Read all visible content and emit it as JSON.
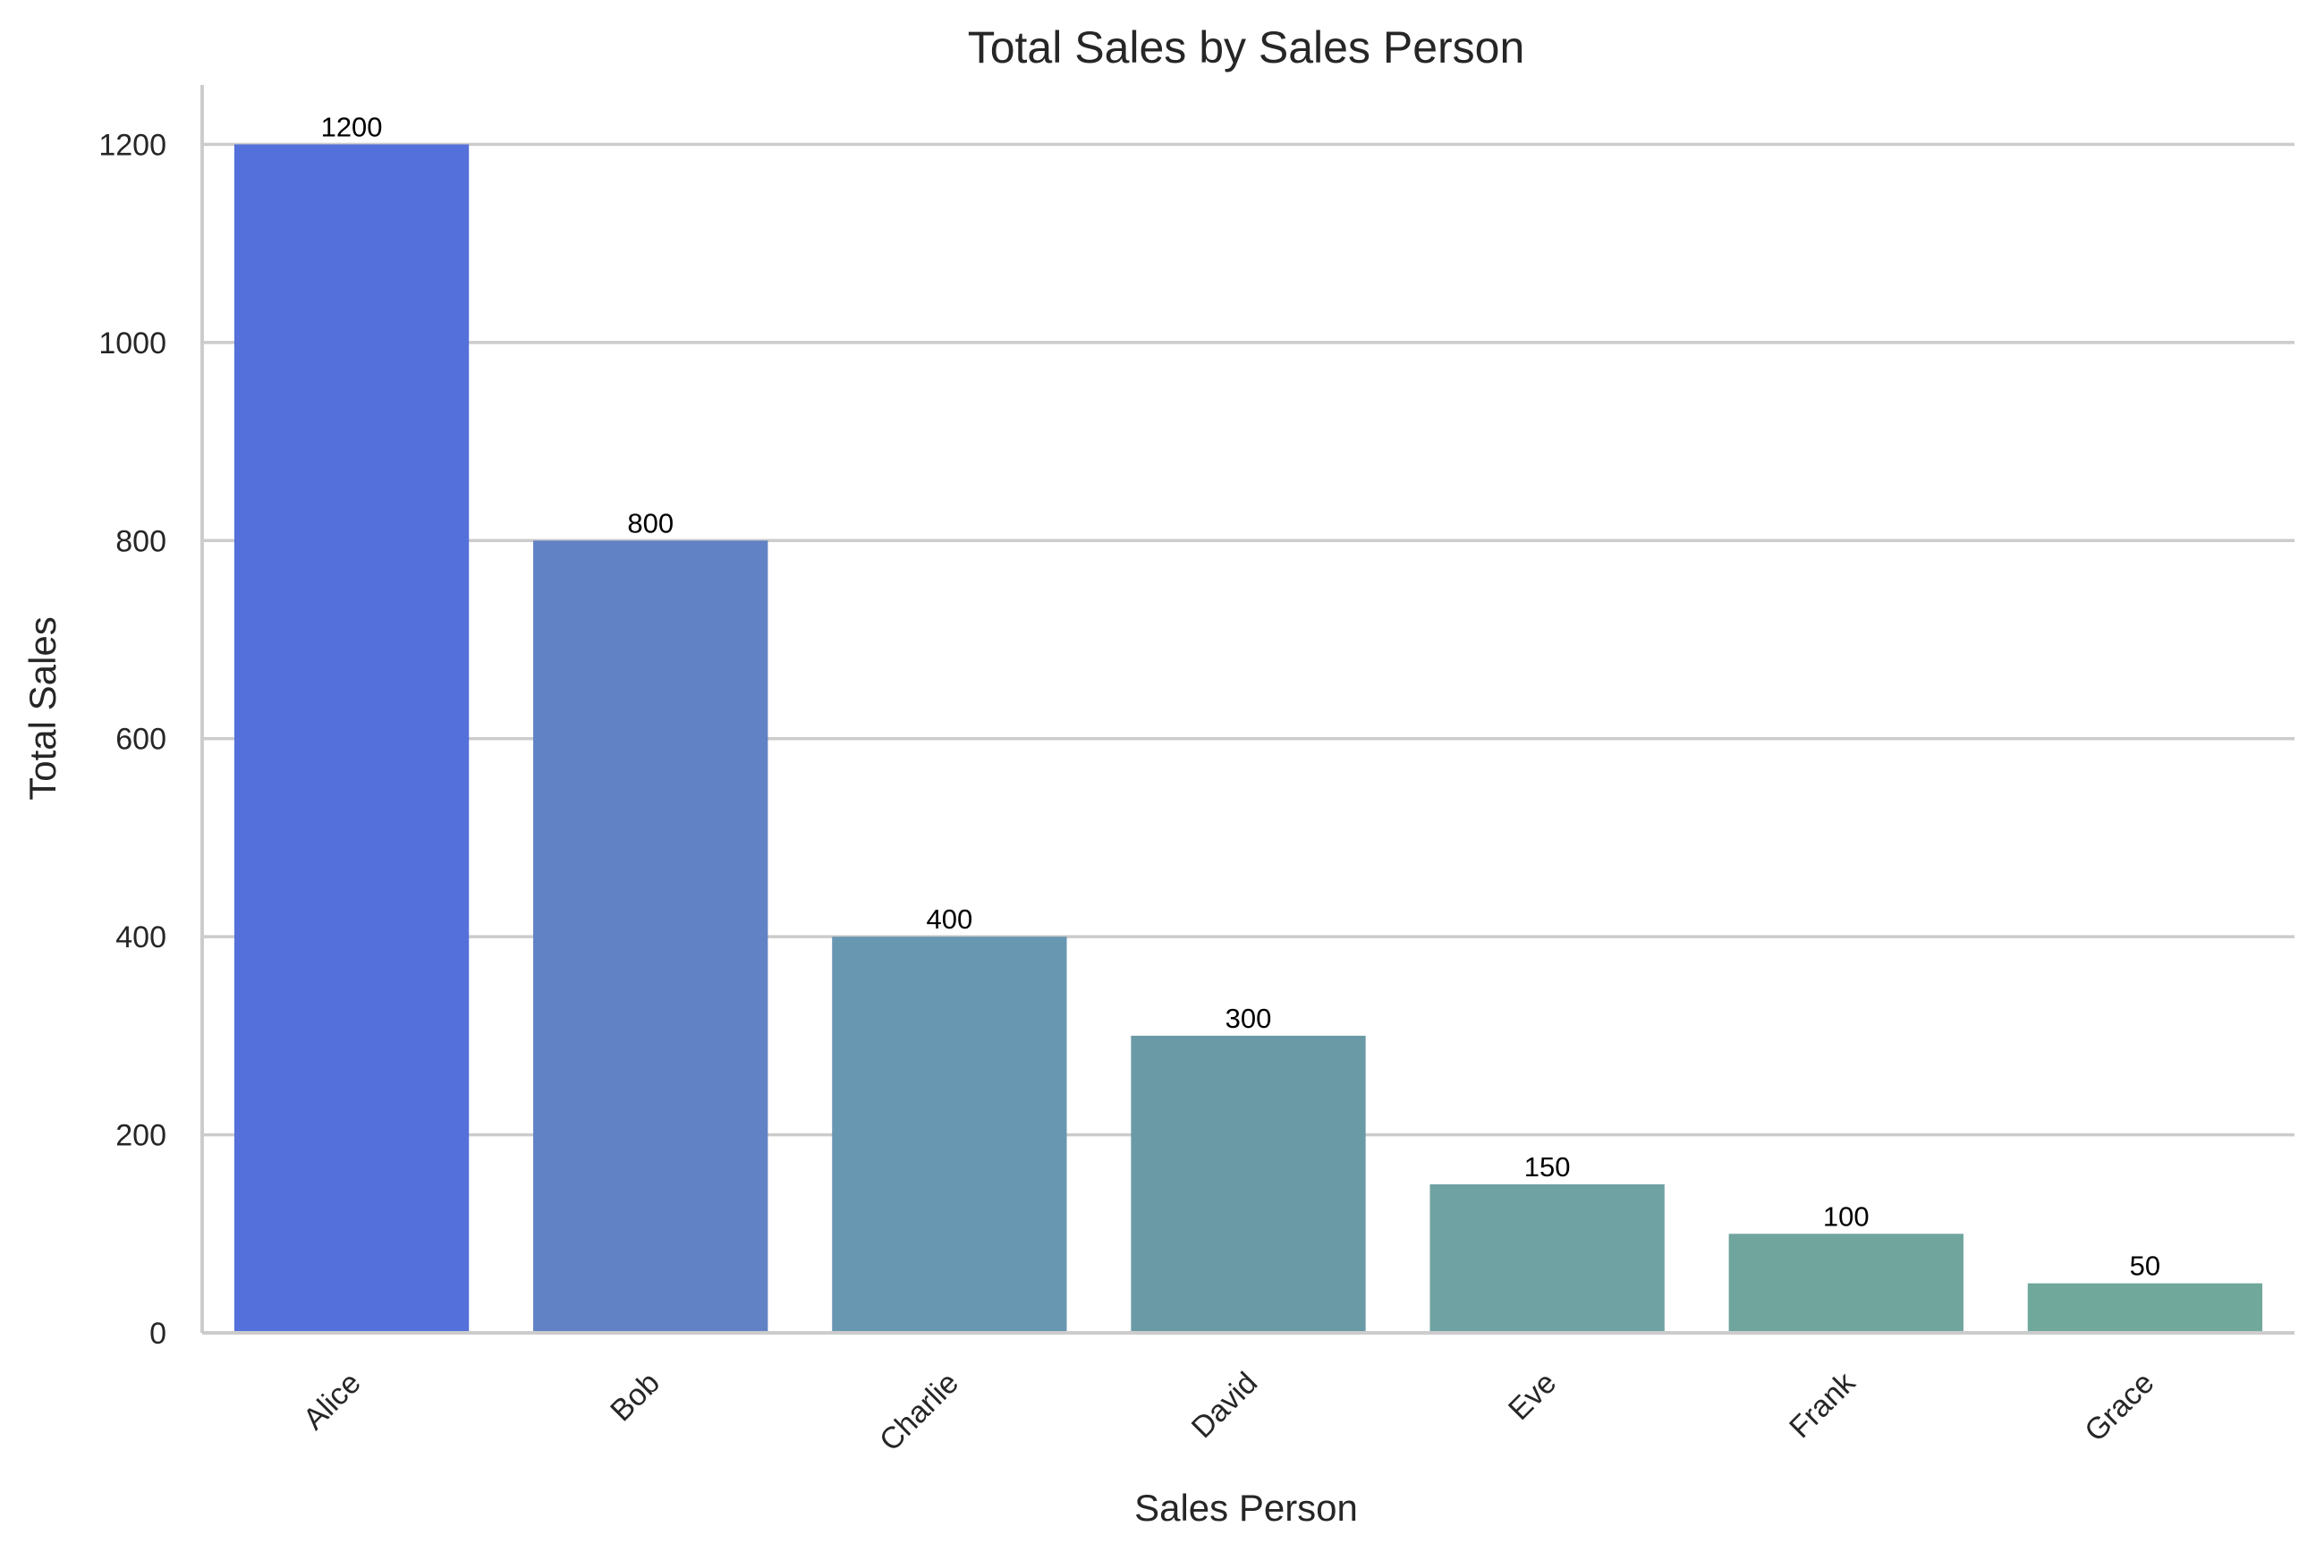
{
  "chart_data": {
    "type": "bar",
    "title": "Total Sales by Sales Person",
    "xlabel": "Sales Person",
    "ylabel": "Total Sales",
    "categories": [
      "Alice",
      "Bob",
      "Charlie",
      "David",
      "Eve",
      "Frank",
      "Grace"
    ],
    "values": [
      1200,
      800,
      400,
      300,
      150,
      100,
      50
    ],
    "colors": [
      "#5470db",
      "#6182c4",
      "#6897b1",
      "#6a9aa6",
      "#6fa2a2",
      "#6fa59d",
      "#70a89b"
    ],
    "ylim": [
      0,
      1260
    ],
    "yticks": [
      0,
      200,
      400,
      600,
      800,
      1000,
      1200
    ],
    "grid": "y",
    "legend": "none",
    "bar_labels": true,
    "xtick_rotation": -45
  }
}
